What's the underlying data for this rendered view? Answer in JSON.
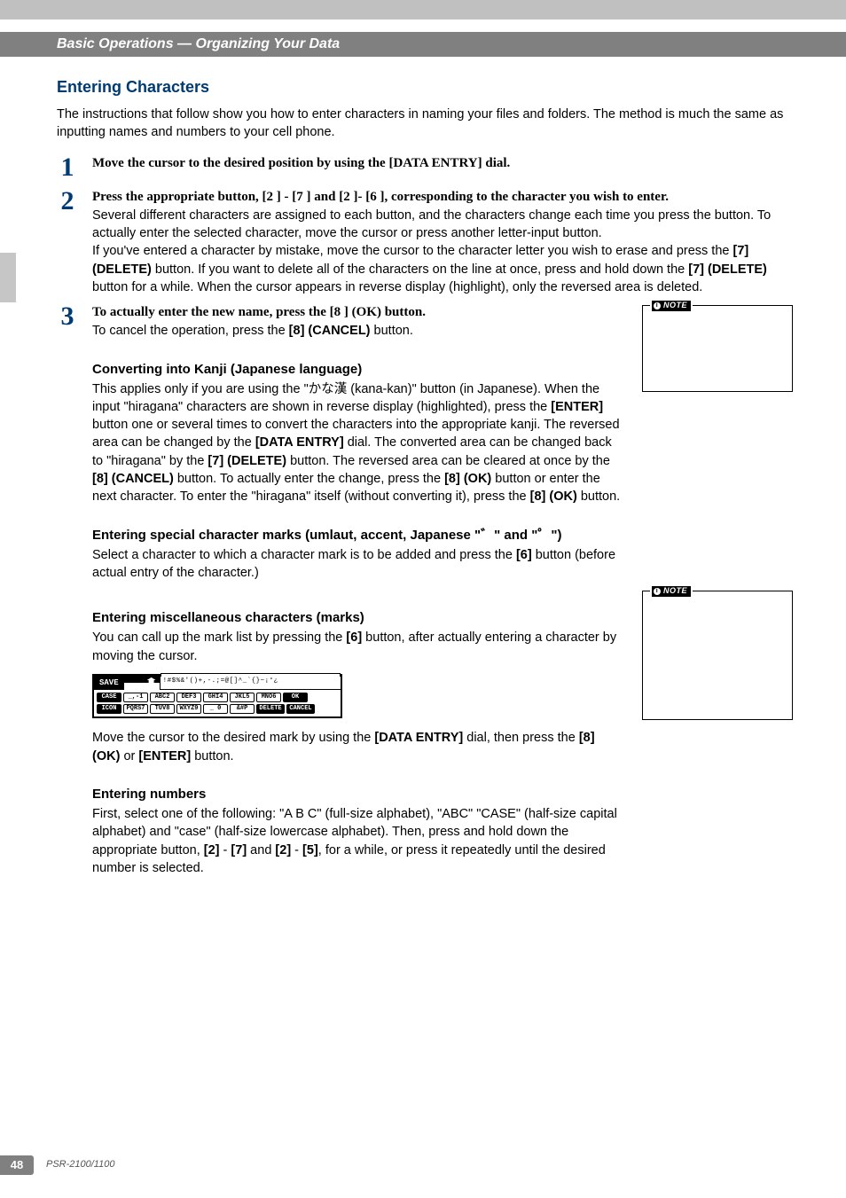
{
  "page": {
    "breadcrumb": "Basic Operations — Organizing Your Data",
    "number": "48",
    "model": "PSR-2100/1100"
  },
  "title": "Entering Characters",
  "intro": "The instructions that follow show you how to enter characters in naming your files and folders. The method is much the same as inputting names and numbers to your cell phone.",
  "steps": {
    "s1": {
      "head": "Move the cursor to the desired position by using the [DATA ENTRY] dial."
    },
    "s2": {
      "head_a": "Press the appropriate button, [2",
      "head_b": "] - [7",
      "head_c": "] and [2",
      "head_d": "]- [6",
      "head_e": "], corresponding to the character you wish to enter.",
      "p1": "Several different characters are assigned to each button, and the characters change each time you press the button. To actually enter the selected character, move the cursor or press another letter-input button.",
      "p2": "If you've entered a character by mistake, move the cursor to the character letter you wish to erase and press the ",
      "p2b": "[7",
      "p2c": "] (DELETE)",
      "p2d": " button. If you want to delete all of the characters on the line at once, press and hold down the ",
      "p2e": "[7",
      "p2f": "] (DELETE)",
      "p2g": " button for a while. When the cursor appears in reverse display (highlight), only the reversed area is deleted."
    },
    "s3": {
      "head_a": "To actually enter the new name, press the [8",
      "head_b": "] (OK) button.",
      "p1a": "To cancel the operation, press the ",
      "p1b": "[8",
      "p1c": "] (CANCEL)",
      "p1d": " button."
    }
  },
  "kanji": {
    "head": "Converting into Kanji (Japanese language)",
    "body_a": "This applies only if you are using the \"",
    "body_kana": "かな漢",
    "body_b": " (kana-kan)\" button (in Japanese). When the input \"hiragana\" characters are shown in reverse display (highlighted), press the ",
    "body_c": "[ENTER]",
    "body_d": " button one or several times to convert the characters into the appropriate kanji. The reversed area can be changed by the ",
    "body_e": "[DATA ENTRY]",
    "body_f": " dial. The converted area can be changed back to \"hiragana\" by the ",
    "body_g": "[7",
    "body_h": "] (DELETE)",
    "body_i": " button. The reversed area can be cleared at once by the ",
    "body_j": "[8",
    "body_k": "] (CANCEL)",
    "body_l": " button. To actually enter the change, press the ",
    "body_m": "[8",
    "body_n": "] (OK)",
    "body_o": " button or enter the next character. To enter the \"hiragana\" itself (without converting it), press the ",
    "body_p": "[8",
    "body_q": "] (OK)",
    "body_r": " button."
  },
  "special": {
    "head": "Entering special character marks (umlaut, accent, Japanese \"゛\" and \"゜\")",
    "p1a": "Select a character to which a character mark is to be added and press the ",
    "p1b": "[6",
    "p1c": "]",
    "p1d": " button (before actual entry of the character.)"
  },
  "misc": {
    "head": "Entering miscellaneous characters (marks)",
    "p1a": "You can call up the mark list by pressing the ",
    "p1b": "[6",
    "p1c": "]",
    "p1d": " button, after actually entering a character by moving the cursor.",
    "p2a": "Move the cursor to the desired mark by using the ",
    "p2b": "[DATA ENTRY]",
    "p2c": " dial, then press the ",
    "p2d": "[8",
    "p2e": "] (OK)",
    "p2f": " or ",
    "p2g": "[ENTER]",
    "p2h": " button."
  },
  "numbers": {
    "head": "Entering numbers",
    "p1a": "First, select one of the following: \"A B C\" (full-size alphabet), \"ABC\" \"CASE\" (half-size capital alphabet) and \"case\" (half-size lowercase alphabet). Then, press and hold down the appropriate button, ",
    "p1b": "[2",
    "p1c": "]",
    "p1d": " - ",
    "p1e": "[7",
    "p1f": "]",
    "p1g": " and ",
    "p1h": "[2",
    "p1i": "]",
    "p1j": " - ",
    "p1k": "[5",
    "p1l": "]",
    "p1m": ", for a while, or press it repeatedly until the desired number is selected."
  },
  "note_label": "NOTE",
  "kbd": {
    "save": "SAVE",
    "strip": "!#$%&'()+,-.;=@[]^_`{}~¡°¿",
    "row1": [
      "CASE",
      "_,-1",
      "ABC2",
      "DEF3",
      "GHI4",
      "JKL5",
      "MNO6",
      "OK"
    ],
    "row2": [
      "ICON",
      "PQRS7",
      "TUV8",
      "WXYZ9",
      "_ 0",
      "&#P",
      "DELETE",
      "CANCEL"
    ]
  }
}
